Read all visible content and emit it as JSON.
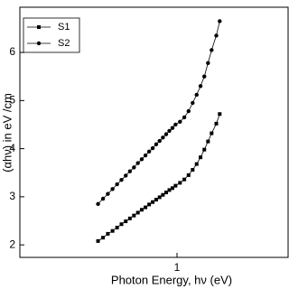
{
  "chart_data": {
    "type": "line",
    "x_label": "Photon Energy, hν (eV)",
    "y_label": "(αhν) in eV /cm",
    "x": [
      0.59,
      0.61,
      0.63,
      0.65,
      0.67,
      0.69,
      0.71,
      0.73,
      0.75,
      0.77,
      0.79,
      0.81,
      0.83,
      0.85,
      0.87,
      0.89,
      0.91,
      0.93,
      0.95,
      0.97,
      0.99,
      1.02,
      1.05,
      1.08,
      1.11,
      1.14,
      1.17,
      1.2,
      1.23,
      1.26,
      1.3,
      1.33
    ],
    "series": [
      {
        "name": "S1",
        "color": "#000000",
        "marker": "square",
        "values": [
          2.08,
          2.15,
          2.23,
          2.29,
          2.36,
          2.43,
          2.49,
          2.55,
          2.61,
          2.67,
          2.73,
          2.78,
          2.84,
          2.89,
          2.94,
          2.99,
          3.04,
          3.09,
          3.14,
          3.18,
          3.23,
          3.29,
          3.36,
          3.45,
          3.56,
          3.68,
          3.82,
          3.98,
          4.15,
          4.32,
          4.52,
          4.72
        ]
      },
      {
        "name": "S2",
        "color": "#000000",
        "marker": "circle",
        "values": [
          2.85,
          2.96,
          3.06,
          3.16,
          3.26,
          3.35,
          3.44,
          3.53,
          3.61,
          3.7,
          3.78,
          3.86,
          3.94,
          4.01,
          4.09,
          4.16,
          4.23,
          4.3,
          4.37,
          4.43,
          4.5,
          4.56,
          4.65,
          4.78,
          4.95,
          5.12,
          5.3,
          5.5,
          5.78,
          6.05,
          6.35,
          6.65
        ]
      }
    ],
    "xlim": [
      0.35,
      2.1
    ],
    "xscale": "log",
    "xticks": [
      1
    ],
    "ylim": [
      1.74,
      6.94
    ],
    "yticks": [
      2,
      3,
      4,
      5,
      6
    ],
    "legend": "upper left",
    "grid": false
  }
}
